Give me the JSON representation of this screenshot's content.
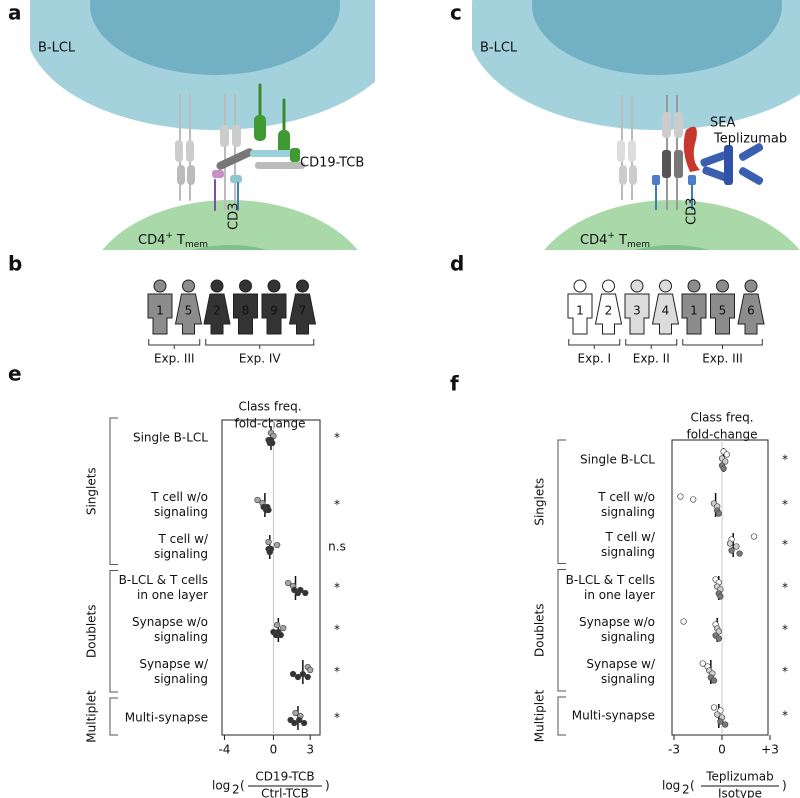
{
  "panels": {
    "letters": [
      "a",
      "b",
      "c",
      "d",
      "e",
      "f"
    ],
    "a": {
      "cell_top": "B-LCL",
      "molecule": "CD19-TCB",
      "receptor": "CD3",
      "cell_bottom": [
        "CD4",
        "+",
        " T",
        "mem"
      ]
    },
    "c": {
      "cell_top": "B-LCL",
      "toxin": "SEA",
      "antibody": "Teplizumab",
      "receptor": "CD3",
      "cell_bottom": [
        "CD4",
        "+",
        " T",
        "mem"
      ]
    },
    "b": {
      "donors": [
        {
          "label": "1",
          "fill": "#8c8c8c"
        },
        {
          "label": "5",
          "fill": "#8c8c8c"
        },
        {
          "label": "2",
          "fill": "#333333"
        },
        {
          "label": "8",
          "fill": "#333333"
        },
        {
          "label": "9",
          "fill": "#333333"
        },
        {
          "label": "7",
          "fill": "#333333"
        }
      ],
      "experiments": [
        "Exp. III",
        "Exp. IV"
      ]
    },
    "d": {
      "donors": [
        {
          "label": "1",
          "fill": "#ffffff"
        },
        {
          "label": "2",
          "fill": "#ffffff"
        },
        {
          "label": "3",
          "fill": "#dcdcdc"
        },
        {
          "label": "4",
          "fill": "#dcdcdc"
        },
        {
          "label": "1",
          "fill": "#8c8c8c"
        },
        {
          "label": "5",
          "fill": "#8c8c8c"
        },
        {
          "label": "6",
          "fill": "#8c8c8c"
        }
      ],
      "experiments": [
        "Exp. I",
        "Exp. II",
        "Exp. III"
      ]
    }
  },
  "chart_data": [
    {
      "type": "strip",
      "title": [
        "Class freq.",
        "fold-change"
      ],
      "categories": [
        [
          "Single B-LCL"
        ],
        [
          "T cell w/o",
          "signaling"
        ],
        [
          "T cell w/",
          "signaling"
        ],
        [
          "B-LCL & T cells",
          "in one layer"
        ],
        [
          "Synapse w/o",
          "signaling"
        ],
        [
          "Synapse w/",
          "signaling"
        ],
        [
          "Multi-synapse"
        ]
      ],
      "groups": [
        "Singlets",
        "Doublets",
        "Multiplet"
      ],
      "significance": [
        "*",
        "*",
        "n.s",
        "*",
        "*",
        "*",
        "*"
      ],
      "series": [
        {
          "color": "#a6a6a6",
          "values": [
            [
              -0.2,
              0.0
            ],
            [
              -1.3,
              -0.9
            ],
            [
              -0.4,
              0.3
            ],
            [
              1.2,
              1.6
            ],
            [
              0.3,
              0.8
            ],
            [
              2.8,
              3.0
            ],
            [
              1.8,
              2.2
            ]
          ]
        },
        {
          "color": "#333333",
          "values": [
            [
              -0.4,
              -0.3,
              -0.2,
              -0.1
            ],
            [
              -0.8,
              -0.6,
              -0.5,
              -0.4
            ],
            [
              -0.4,
              -0.3,
              -0.2,
              -0.3
            ],
            [
              1.7,
              2.0,
              2.2,
              2.6
            ],
            [
              0.0,
              0.2,
              0.4,
              0.6
            ],
            [
              1.6,
              2.0,
              2.4,
              2.8
            ],
            [
              1.4,
              1.7,
              2.1,
              2.5
            ]
          ]
        }
      ],
      "means": [
        -0.2,
        -0.7,
        -0.3,
        1.8,
        0.4,
        2.4,
        2.0
      ],
      "xlim": [
        -4.2,
        3.8
      ],
      "xticks": [
        -4,
        0,
        3
      ],
      "xlabel": {
        "prefix": "log",
        "sub": "2",
        "open": "(",
        "numerator": "CD19-TCB",
        "denominator": "Ctrl-TCB",
        "close": ")"
      }
    },
    {
      "type": "strip",
      "title": [
        "Class freq.",
        "fold-change"
      ],
      "categories": [
        [
          "Single B-LCL"
        ],
        [
          "T cell w/o",
          "signaling"
        ],
        [
          "T cell w/",
          "signaling"
        ],
        [
          "B-LCL & T cells",
          "in one layer"
        ],
        [
          "Synapse w/o",
          "signaling"
        ],
        [
          "Synapse w/",
          "signaling"
        ],
        [
          "Multi-synapse"
        ]
      ],
      "groups": [
        "Singlets",
        "Doublets",
        "Multiplet"
      ],
      "significance": [
        "*",
        "*",
        "*",
        "*",
        "*",
        "*",
        "*"
      ],
      "series": [
        {
          "color": "#ffffff",
          "values": [
            [
              0.1,
              0.3
            ],
            [
              -2.6,
              -1.8
            ],
            [
              2.0,
              0.6
            ],
            [
              -0.4,
              -0.2
            ],
            [
              -2.4,
              -0.4
            ],
            [
              -1.2,
              -0.9
            ],
            [
              -0.5,
              -0.1
            ]
          ]
        },
        {
          "color": "#cfcfcf",
          "values": [
            [
              0.0,
              0.2
            ],
            [
              -0.5,
              -0.3
            ],
            [
              0.5,
              0.9
            ],
            [
              -0.3,
              -0.1
            ],
            [
              -0.3,
              -0.2
            ],
            [
              -0.8,
              -0.6
            ],
            [
              -0.3,
              0.0
            ]
          ]
        },
        {
          "color": "#7a7a7a",
          "values": [
            [
              0.0,
              0.1
            ],
            [
              -0.3,
              -0.2
            ],
            [
              0.6,
              1.1
            ],
            [
              -0.2,
              -0.1
            ],
            [
              -0.4,
              -0.2
            ],
            [
              -0.7,
              -0.5
            ],
            [
              -0.1,
              0.2
            ]
          ]
        }
      ],
      "means": [
        0.1,
        -0.4,
        0.7,
        -0.2,
        -0.3,
        -0.7,
        -0.2
      ],
      "xlim": [
        -3.125,
        2.875
      ],
      "xticks": [
        -3,
        0,
        {
          "value": 3,
          "label": "+3"
        }
      ],
      "xlabel": {
        "prefix": "log",
        "sub": "2",
        "open": "(",
        "numerator": "Teplizumab",
        "denominator": "Isotype",
        "close": ")"
      }
    }
  ]
}
